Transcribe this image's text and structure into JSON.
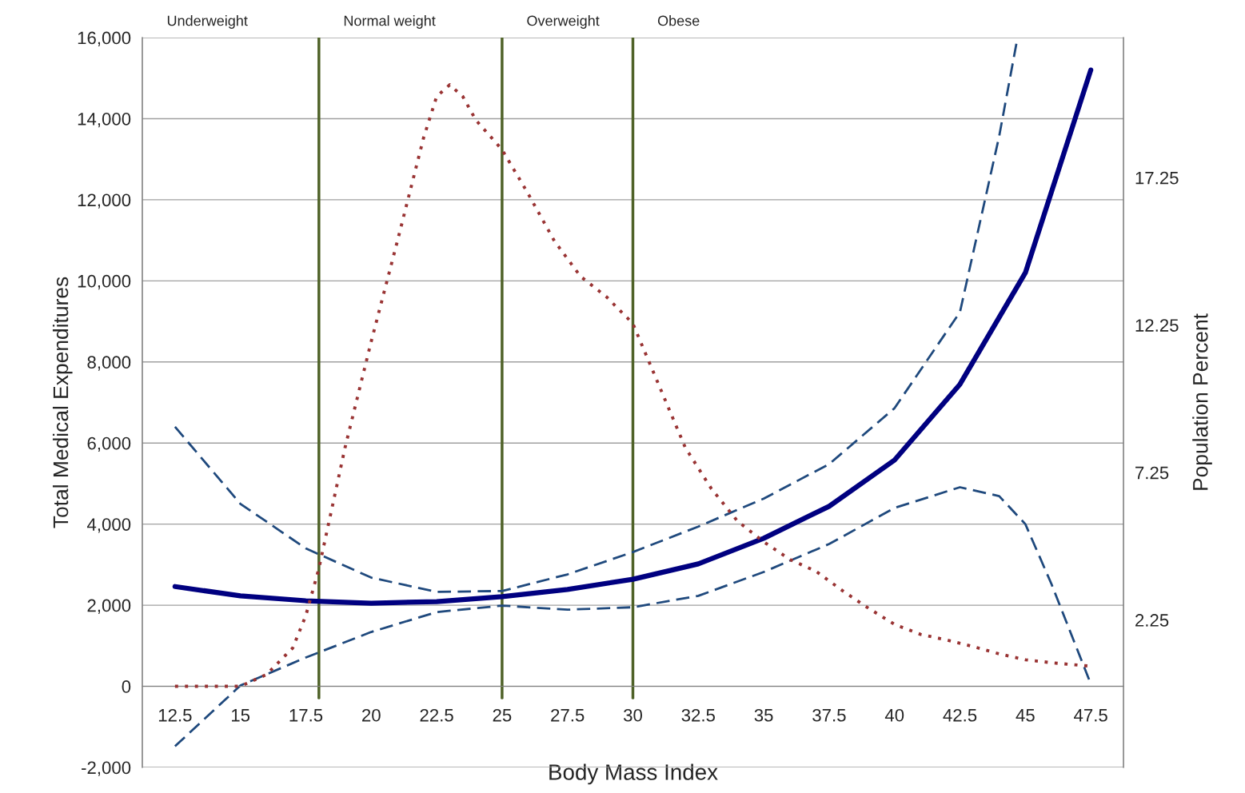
{
  "chart_data": {
    "type": "line",
    "xlabel": "Body Mass Index",
    "ylabel": "Total Medical Expenditures",
    "y2label": "Population Percent",
    "xlim": [
      11.25,
      48.75
    ],
    "xticks": [
      12.5,
      15,
      17.5,
      20,
      22.5,
      25,
      27.5,
      30,
      32.5,
      35,
      37.5,
      40,
      42.5,
      45,
      47.5
    ],
    "ylim": [
      -2000,
      16000
    ],
    "yticks": [
      {
        "value": -2000,
        "label": "-2,000"
      },
      0,
      {
        "value": 2000,
        "label": "2,000"
      },
      {
        "value": 4000,
        "label": "4,000"
      },
      {
        "value": 6000,
        "label": "6,000"
      },
      {
        "value": 8000,
        "label": "8,000"
      },
      {
        "value": 10000,
        "label": "10,000"
      },
      {
        "value": 12000,
        "label": "12,000"
      },
      {
        "value": 14000,
        "label": "14,000"
      },
      {
        "value": 16000,
        "label": "16,000"
      }
    ],
    "y2lim": [
      -2.75,
      22
    ],
    "y2ticks": [
      2.25,
      7.25,
      12.25,
      17.25
    ],
    "grid": "y",
    "legend": false,
    "series": [
      {
        "color": "#000080",
        "line_style": "solid",
        "x": [
          12.5,
          15,
          17.5,
          20,
          22.5,
          25,
          27.5,
          30,
          32.5,
          35,
          37.5,
          40,
          42.5,
          45,
          47.5
        ],
        "values": [
          2460,
          2230,
          2110,
          2050,
          2090,
          2210,
          2390,
          2640,
          3020,
          3650,
          4440,
          5580,
          7450,
          10200,
          15200
        ]
      },
      {
        "color": "#1f497d",
        "line_style": "dashed",
        "x": [
          12.5,
          15,
          17.5,
          20,
          22.5,
          25,
          27.5,
          30,
          32.5,
          35,
          37.5,
          40,
          42.5,
          44,
          44.7
        ],
        "values": [
          6400,
          4500,
          3400,
          2680,
          2330,
          2350,
          2760,
          3310,
          3940,
          4630,
          5480,
          6860,
          9230,
          13570,
          16000
        ]
      },
      {
        "color": "#1f497d",
        "line_style": "dashed",
        "x": [
          12.5,
          15,
          17.5,
          20,
          22.5,
          25,
          27.5,
          30,
          32.5,
          35,
          37.5,
          40,
          42.5,
          44,
          45,
          46,
          47.5
        ],
        "values": [
          -1480,
          20,
          710,
          1340,
          1830,
          1990,
          1890,
          1950,
          2230,
          2820,
          3510,
          4400,
          4910,
          4690,
          4000,
          2520,
          60
        ]
      },
      {
        "color": "#993333",
        "line_style": "dotted",
        "axis": "y2",
        "x": [
          12.5,
          15,
          16,
          17,
          17.5,
          18,
          19,
          20,
          21,
          22,
          22.5,
          23,
          23.5,
          24,
          25,
          26,
          27,
          28,
          29,
          30,
          31,
          32,
          33,
          34,
          35,
          36,
          37,
          38,
          39,
          40,
          41,
          42,
          43,
          44,
          45,
          46,
          47.5
        ],
        "values": [
          0,
          0,
          0.4,
          1.3,
          2.4,
          4.0,
          8.1,
          11.7,
          15.1,
          18.6,
          20.0,
          20.4,
          20.0,
          19.2,
          18.2,
          16.7,
          15.1,
          13.9,
          13.2,
          12.3,
          10.2,
          8.1,
          6.7,
          5.6,
          4.9,
          4.3,
          3.9,
          3.25,
          2.65,
          2.1,
          1.76,
          1.57,
          1.35,
          1.1,
          0.9,
          0.8,
          0.68
        ]
      }
    ],
    "ref_lines": [
      {
        "axis": "x",
        "value": 18,
        "color": "#4f6228"
      },
      {
        "axis": "x",
        "value": 25,
        "color": "#4f6228"
      },
      {
        "axis": "x",
        "value": 30,
        "color": "#4f6228"
      }
    ],
    "annotations": [
      "Underweight",
      "Normal weight",
      "Overweight",
      "Obese"
    ]
  }
}
